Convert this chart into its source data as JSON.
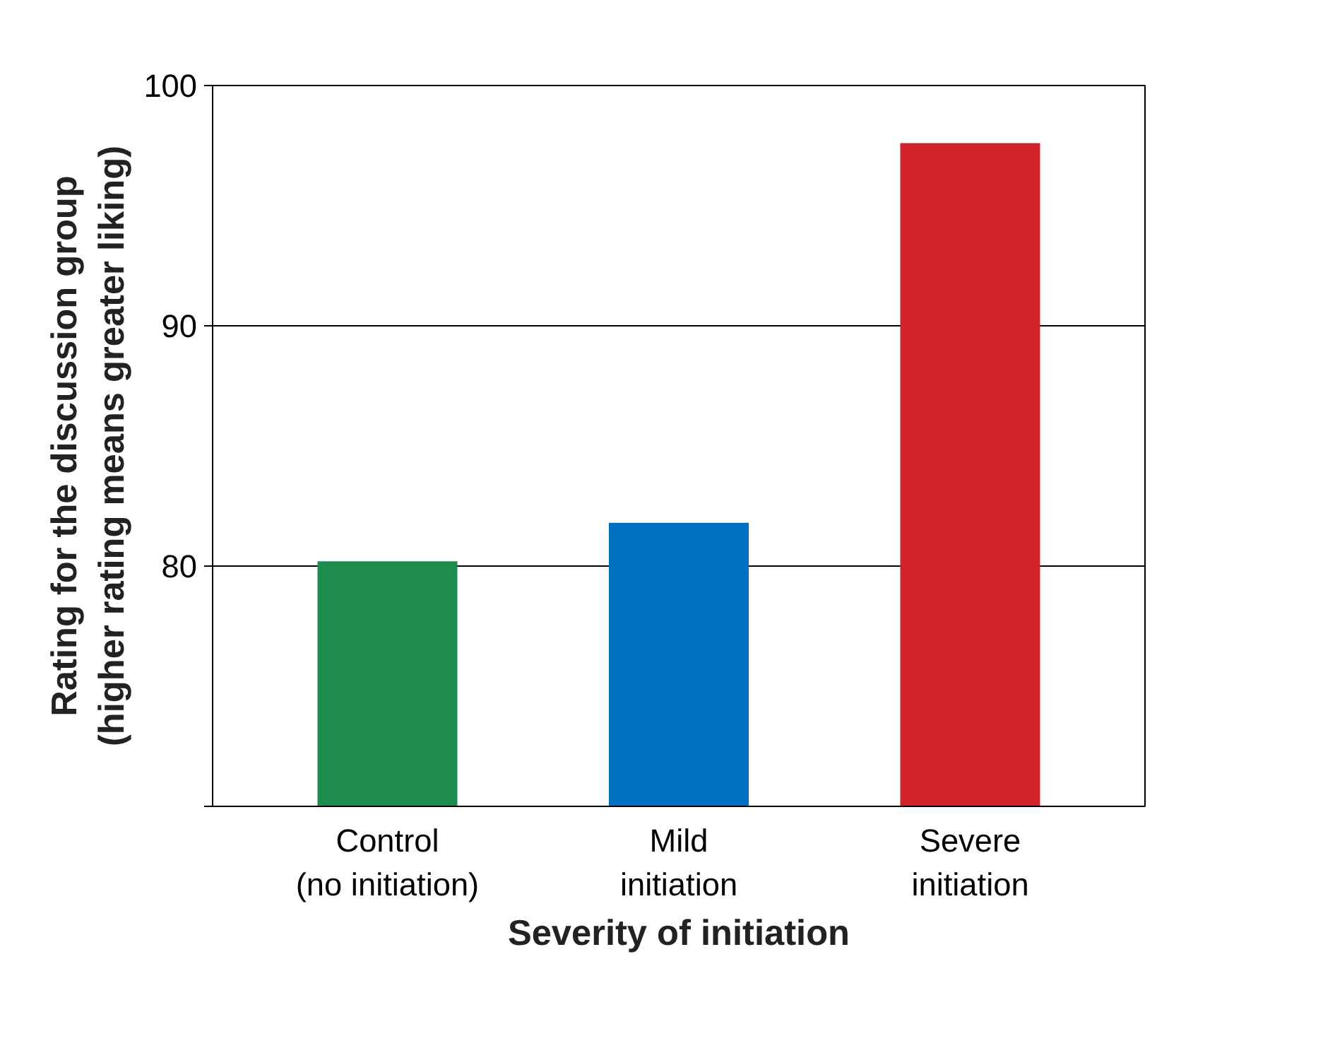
{
  "chart_data": {
    "type": "bar",
    "xlabel": "Severity of initiation",
    "ylabel": "Rating for the discussion group\n(higher rating means greater liking)",
    "categories": [
      "Control\n(no initiation)",
      "Mild\ninitiation",
      "Severe\ninitiation"
    ],
    "values": [
      80.2,
      81.8,
      97.6
    ],
    "colors": [
      "#1e8c4e",
      "#0070c0",
      "#d2232a"
    ],
    "ylim": [
      70,
      100
    ],
    "yticks": [
      {
        "value": 70,
        "label": null
      },
      80,
      90,
      100
    ],
    "grid": "y"
  }
}
